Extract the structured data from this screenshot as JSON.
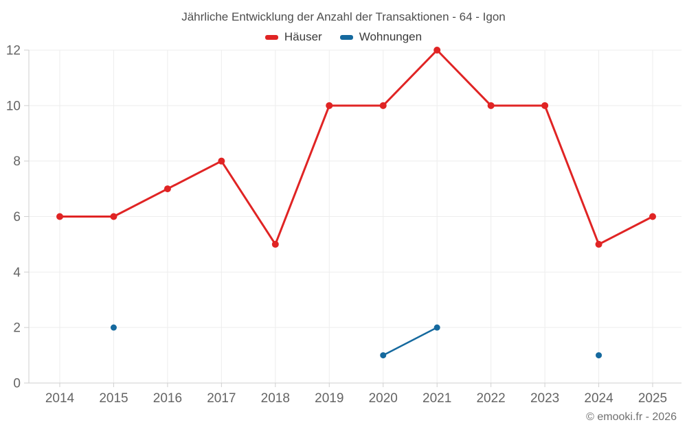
{
  "title": "Jährliche Entwicklung der Anzahl der Transaktionen - 64 - Igon",
  "footer": "© emooki.fr - 2026",
  "colors": {
    "haeuser": "#e02424",
    "wohnungen": "#15699e",
    "grid": "#ededed",
    "axis": "#cfcfcf",
    "tick_label": "#646464",
    "title_text": "#4e4e4e",
    "legend_text": "#3a3a3a",
    "footer_text": "#6f6f6f",
    "background": "#ffffff"
  },
  "chart_data": {
    "type": "line",
    "title": "Jährliche Entwicklung der Anzahl der Transaktionen - 64 - Igon",
    "xlabel": "",
    "ylabel": "",
    "categories": [
      "2014",
      "2015",
      "2016",
      "2017",
      "2018",
      "2019",
      "2020",
      "2021",
      "2022",
      "2023",
      "2024",
      "2025"
    ],
    "series": [
      {
        "name": "Häuser",
        "color": "#e02424",
        "marker_radius": 5,
        "line_width": 3,
        "values": [
          6,
          6,
          7,
          8,
          5,
          10,
          10,
          12,
          10,
          10,
          5,
          6
        ]
      },
      {
        "name": "Wohnungen",
        "color": "#15699e",
        "marker_radius": 4.5,
        "line_width": 2.5,
        "values": [
          null,
          2,
          null,
          null,
          null,
          null,
          1,
          2,
          null,
          null,
          1,
          null
        ]
      }
    ],
    "ylim": [
      0,
      12
    ],
    "yticks": [
      0,
      2,
      4,
      6,
      8,
      10,
      12
    ],
    "grid": true,
    "legend_position": "top",
    "annotations": [
      "© emooki.fr - 2026"
    ]
  }
}
